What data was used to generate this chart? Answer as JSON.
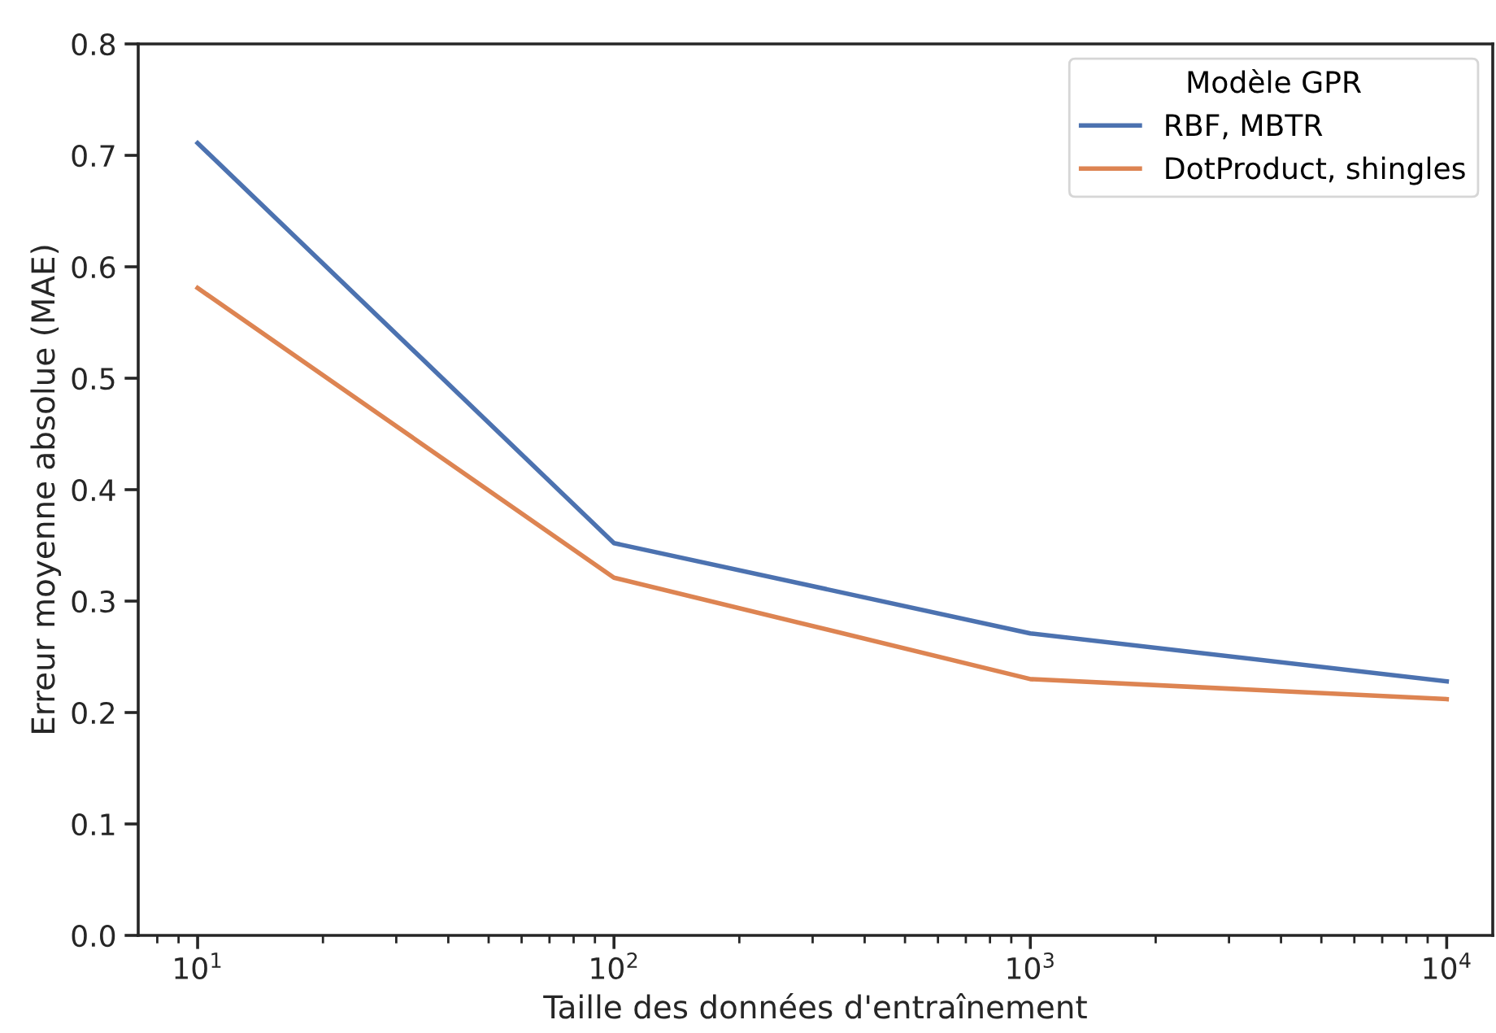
{
  "chart_data": {
    "type": "line",
    "xlabel": "Taille des données d'entraînement",
    "ylabel": "Erreur moyenne absolue (MAE)",
    "legend_title": "Modèle GPR",
    "x": [
      10,
      100,
      1000,
      10000
    ],
    "series": [
      {
        "name": "RBF, MBTR",
        "color": "#4c72b0",
        "values": [
          0.711,
          0.352,
          0.271,
          0.228
        ]
      },
      {
        "name": "DotProduct, shingles",
        "color": "#dd8452",
        "values": [
          0.581,
          0.321,
          0.23,
          0.212
        ]
      }
    ],
    "log": "x",
    "xlim": [
      7.2,
      12900
    ],
    "xticks": [
      {
        "value": 10,
        "label": "10$^{1}$"
      },
      {
        "value": 100,
        "label": "10$^{2}$"
      },
      {
        "value": 1000,
        "label": "10$^{3}$"
      },
      {
        "value": 10000,
        "label": "10$^{4}$"
      }
    ],
    "ylim": [
      0,
      0.8
    ],
    "yticks": [
      {
        "value": 0,
        "label": "0.0"
      },
      0.1,
      0.2,
      0.3,
      0.4,
      0.5,
      0.6,
      0.7,
      0.8
    ],
    "legend": "top right",
    "grid": false
  }
}
